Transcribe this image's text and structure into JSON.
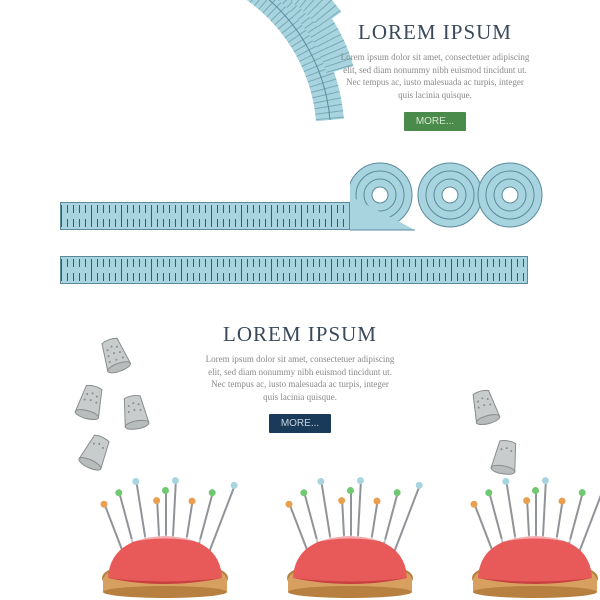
{
  "top": {
    "title": "LOREM IPSUM",
    "title_color": "#3a4a5a",
    "body": "Lorem ipsum dolor sit amet, consectetuer adipiscing\nelit, sed diam nonummy nibh euismod tincidunt ut.\nNec tempus ac, iusto malesuada ac turpis, integer\nquis lacinia quisque.",
    "body_color": "#8a8a8a",
    "button_label": "MORE...",
    "button_bg": "#4a8a4a",
    "button_fg": "#d8e8d0",
    "tape_color": "#a8d4e0",
    "tape_border": "#5a8a9a"
  },
  "bottom": {
    "title": "LOREM IPSUM",
    "title_color": "#3a4a5a",
    "body": "Lorem ipsum dolor sit amet, consectetuer adipiscing\nelit, sed diam nonummy nibh euismod tincidunt ut.\nNec tempus ac, iusto malesuada ac turpis, integer\nquis lacinia quisque.",
    "body_color": "#8a8a8a",
    "button_label": "MORE...",
    "button_bg": "#1a3a5a",
    "button_fg": "#c8d4e0",
    "thimble_fill": "#c8cccc",
    "thimble_stroke": "#888c8c",
    "cushion_fill": "#e85a5a",
    "cushion_shadow": "#c84040",
    "base_fill": "#d8a060",
    "base_stroke": "#b88040",
    "pin_color": "#909498",
    "pin_heads": [
      "#e8a050",
      "#70c870",
      "#a8d4e0",
      "#e8a050",
      "#70c870",
      "#a8d4e0",
      "#e8a050",
      "#70c870",
      "#a8d4e0"
    ]
  }
}
